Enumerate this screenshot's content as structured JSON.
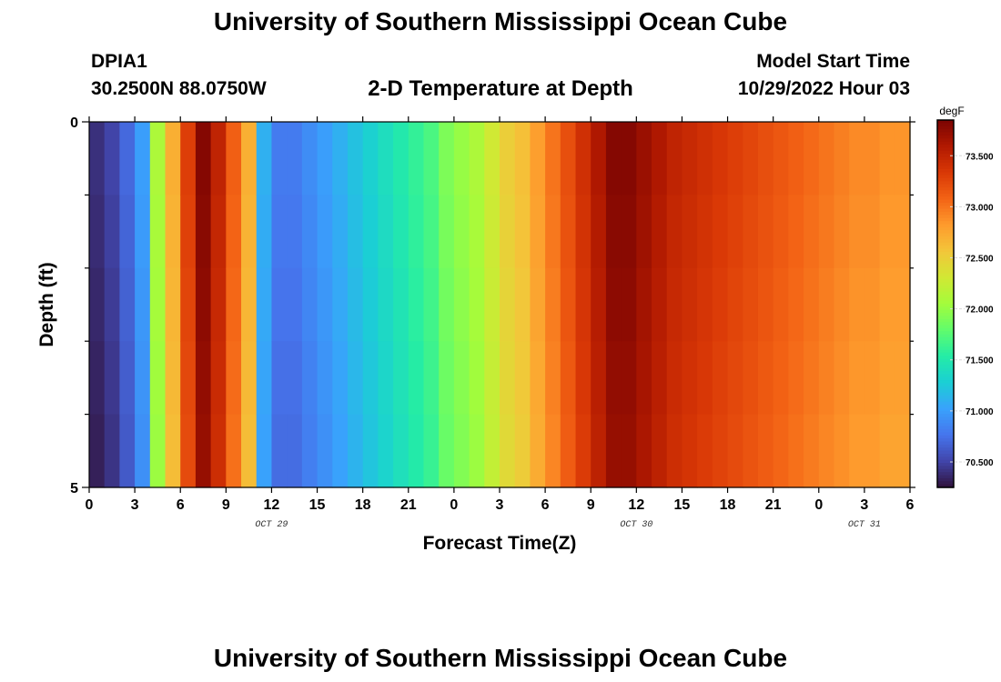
{
  "header": {
    "title": "University of Southern Mississippi Ocean Cube",
    "station": "DPIA1",
    "coordinates": "30.2500N  88.0750W",
    "subtitle": "2-D Temperature at Depth",
    "model_start_label": "Model Start Time",
    "model_start_time": "10/29/2022 Hour 03"
  },
  "footer": {
    "title": "University of Southern Mississippi Ocean Cube"
  },
  "chart_data": {
    "type": "heatmap",
    "title": "2-D Temperature at Depth",
    "xlabel": "Forecast Time(Z)",
    "ylabel": "Depth (ft)",
    "x_hours": [
      0,
      54
    ],
    "x_tick_labels": [
      "0",
      "3",
      "6",
      "9",
      "12",
      "15",
      "18",
      "21",
      "0",
      "3",
      "6",
      "9",
      "12",
      "15",
      "18",
      "21",
      "0",
      "3",
      "6"
    ],
    "date_labels": [
      {
        "label": "OCT 29",
        "hour": 12
      },
      {
        "label": "OCT 30",
        "hour": 36
      },
      {
        "label": "OCT 31",
        "hour": 51
      }
    ],
    "y_tick_labels": [
      "0",
      "5"
    ],
    "ylim": [
      0,
      5
    ],
    "depth_layers": 5,
    "colorbar": {
      "unit": "degF",
      "range": [
        70.25,
        73.85
      ],
      "ticks": [
        "70.500",
        "71.000",
        "71.500",
        "72.000",
        "72.500",
        "73.000",
        "73.500"
      ],
      "tick_values": [
        70.5,
        71.0,
        71.5,
        72.0,
        72.5,
        73.0,
        73.5
      ],
      "colors": [
        "#30123b",
        "#4145ab",
        "#4675ed",
        "#39a2fc",
        "#1bcfd4",
        "#24eca6",
        "#61fc6c",
        "#a4fc3b",
        "#d1e834",
        "#f3c63a",
        "#fe9b2d",
        "#f36315",
        "#d93806",
        "#b11901",
        "#7a0402"
      ]
    },
    "temperature_by_hour": [
      70.4,
      70.5,
      70.7,
      71.0,
      72.1,
      72.7,
      73.3,
      73.8,
      73.5,
      73.1,
      72.7,
      71.1,
      70.8,
      70.8,
      70.9,
      71.0,
      71.1,
      71.2,
      71.3,
      71.4,
      71.5,
      71.6,
      71.7,
      71.9,
      72.0,
      72.1,
      72.3,
      72.5,
      72.6,
      72.8,
      73.0,
      73.2,
      73.4,
      73.6,
      73.8,
      73.8,
      73.7,
      73.6,
      73.5,
      73.45,
      73.4,
      73.35,
      73.3,
      73.25,
      73.2,
      73.15,
      73.1,
      73.05,
      73.0,
      72.95,
      72.9,
      72.9,
      72.85,
      72.85,
      72.9
    ]
  }
}
